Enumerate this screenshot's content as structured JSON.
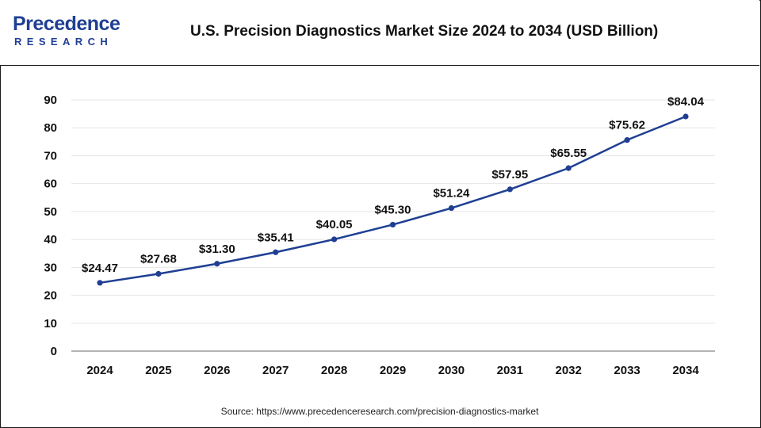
{
  "header": {
    "logo_top": "Precedence",
    "logo_bottom": "RESEARCH",
    "title": "U.S. Precision Diagnostics Market Size 2024 to 2034 (USD Billion)"
  },
  "source": "Source: https://www.precedenceresearch.com/precision-diagnostics-market",
  "colors": {
    "line": "#1f3f93",
    "brand": "#1f3f93"
  },
  "chart_data": {
    "type": "line",
    "title": "U.S. Precision Diagnostics Market Size 2024 to 2034 (USD Billion)",
    "categories": [
      "2024",
      "2025",
      "2026",
      "2027",
      "2028",
      "2029",
      "2030",
      "2031",
      "2032",
      "2033",
      "2034"
    ],
    "series": [
      {
        "values": [
          24.47,
          27.68,
          31.3,
          35.41,
          40.05,
          45.3,
          51.24,
          57.95,
          65.55,
          75.62,
          84.04
        ],
        "labels": [
          "$24.47",
          "$27.68",
          "$31.30",
          "$35.41",
          "$40.05",
          "$45.30",
          "$51.24",
          "$57.95",
          "$65.55",
          "$75.62",
          "$84.04"
        ]
      }
    ],
    "yticks": [
      "0",
      "10",
      "20",
      "30",
      "40",
      "50",
      "60",
      "70",
      "80",
      "90"
    ],
    "ylim": [
      0,
      90
    ],
    "grid": true,
    "legend": "none"
  }
}
